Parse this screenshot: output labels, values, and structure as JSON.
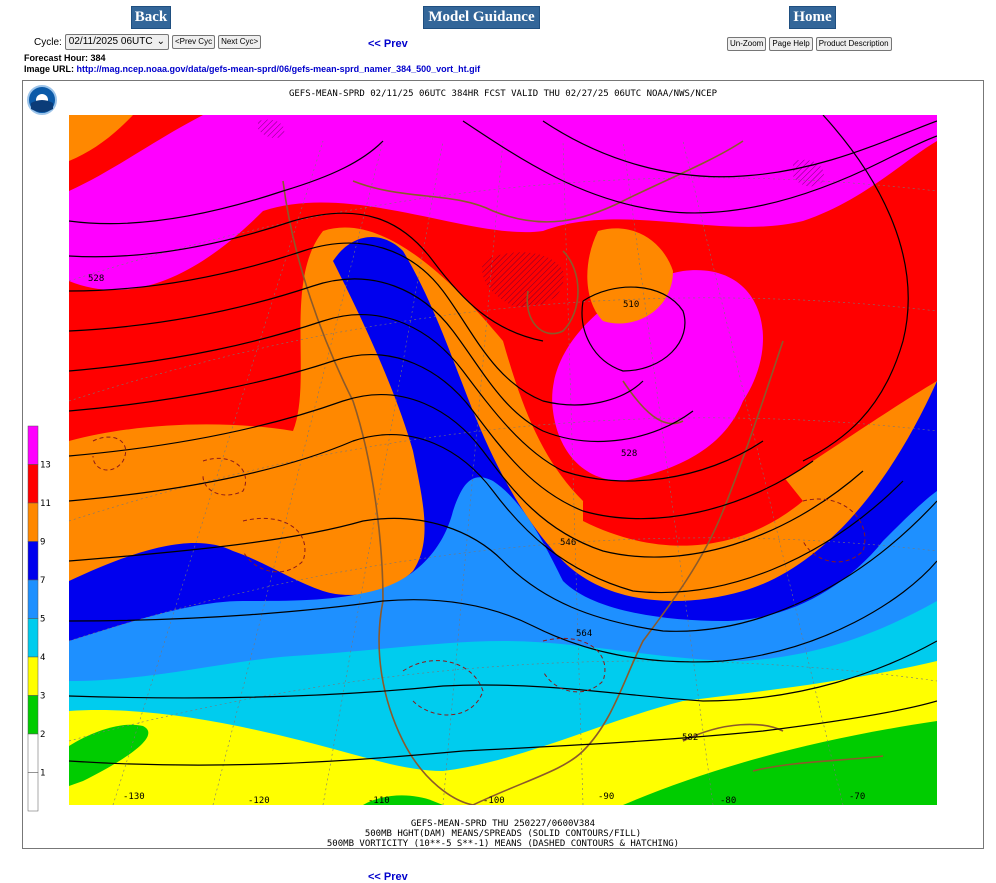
{
  "nav": {
    "back": "Back",
    "model_guidance": "Model Guidance",
    "home": "Home"
  },
  "cycle": {
    "label": "Cycle:",
    "value": "02/11/2025 06UTC",
    "prev": "<Prev Cyc",
    "next": "Next Cyc>"
  },
  "prev_link": "<< Prev",
  "buttons": {
    "unzoom": "Un-Zoom",
    "page_help": "Page Help",
    "product_desc": "Product Description"
  },
  "forecast_hour": "Forecast Hour: 384",
  "image_url_label": "Image URL:",
  "image_url": "http://mag.ncep.noaa.gov/data/gefs-mean-sprd/06/gefs-mean-sprd_namer_384_500_vort_ht.gif",
  "map": {
    "title": "GEFS-MEAN-SPRD 02/11/25 06UTC 384HR FCST VALID THU 02/27/25 06UTC NOAA/NWS/NCEP",
    "footer": [
      "GEFS-MEAN-SPRD THU 250227/0600V384",
      "500MB HGHT(DAM) MEANS/SPREADS (SOLID CONTOURS/FILL)",
      "500MB VORTICITY (10**-5 S**-1) MEANS (DASHED CONTOURS & HATCHING)"
    ],
    "lon_labels": [
      "-130",
      "-120",
      "-110",
      "-100",
      "-90",
      "-80",
      "-70"
    ],
    "contour_labels": [
      "528",
      "510",
      "528",
      "546",
      "564",
      "582"
    ],
    "legend": {
      "labels": [
        "13",
        "11",
        "9",
        "7",
        "5",
        "4",
        "3",
        "2",
        "1"
      ],
      "colors": [
        "#ff00ff",
        "#ff0000",
        "#ff8800",
        "#0000ee",
        "#1e90ff",
        "#00ccee",
        "#ffff00",
        "#00cc00",
        "#ffffff"
      ]
    },
    "logo_icon": "noaa-logo"
  }
}
